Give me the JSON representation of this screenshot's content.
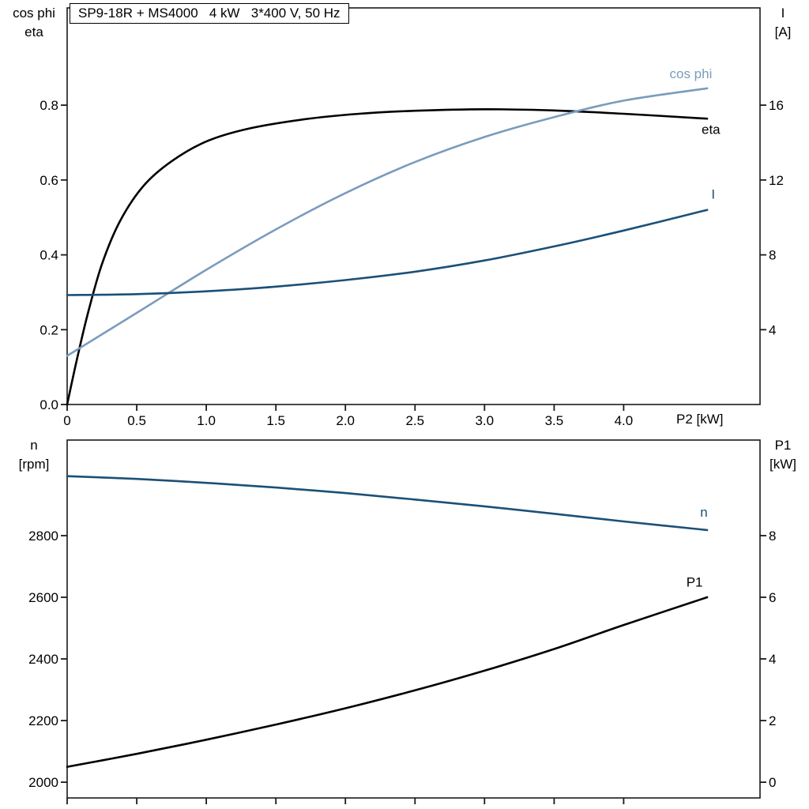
{
  "colors": {
    "frame": "#1a1a1a",
    "black_curve": "#000000",
    "light_blue": "#7a9cbd",
    "dark_blue": "#1b5078",
    "background": "#ffffff"
  },
  "chart_data": [
    {
      "type": "line",
      "title": "SP9-18R + MS4000   4 kW   3*400 V, 50 Hz",
      "xlabel": "P2 [kW]",
      "xlim": [
        0,
        4.98
      ],
      "grid": false,
      "legend": "inline-labels",
      "x_ticks": [
        0,
        0.5,
        1.0,
        1.5,
        2.0,
        2.5,
        3.0,
        3.5,
        4.0
      ],
      "x_tick_labels": [
        "0",
        "0.5",
        "1.0",
        "1.5",
        "2.0",
        "2.5",
        "3.0",
        "3.5",
        "4.0"
      ],
      "left_axis": {
        "label_lines": [
          "cos phi",
          "eta"
        ],
        "lim": [
          0,
          1.06
        ],
        "ticks": [
          0.0,
          0.2,
          0.4,
          0.6,
          0.8
        ],
        "tick_labels": [
          "0.0",
          "0.2",
          "0.4",
          "0.6",
          "0.8"
        ]
      },
      "right_axis": {
        "label_lines": [
          "I",
          "[A]"
        ],
        "lim": [
          0,
          21.2
        ],
        "ticks": [
          4,
          8,
          12,
          16
        ],
        "tick_labels": [
          "4",
          "8",
          "12",
          "16"
        ]
      },
      "series": [
        {
          "name": "eta",
          "axis": "left",
          "color": "#000000",
          "width": 2.6,
          "x": [
            0,
            0.07,
            0.15,
            0.25,
            0.38,
            0.55,
            0.75,
            1.0,
            1.3,
            1.7,
            2.1,
            2.5,
            3.0,
            3.5,
            4.0,
            4.6
          ],
          "y": [
            0,
            0.12,
            0.245,
            0.375,
            0.49,
            0.585,
            0.65,
            0.703,
            0.737,
            0.762,
            0.777,
            0.785,
            0.789,
            0.786,
            0.777,
            0.764
          ],
          "label": {
            "text": "eta",
            "x": 4.56,
            "y": 0.723
          }
        },
        {
          "name": "cos phi",
          "axis": "left",
          "color": "#7a9cbd",
          "width": 2.6,
          "x": [
            0,
            0.5,
            1.0,
            1.5,
            2.0,
            2.5,
            3.0,
            3.5,
            4.0,
            4.6
          ],
          "y": [
            0.13,
            0.245,
            0.36,
            0.468,
            0.565,
            0.648,
            0.715,
            0.768,
            0.812,
            0.845
          ],
          "label": {
            "text": "cos phi",
            "x": 4.33,
            "y": 0.872
          }
        },
        {
          "name": "I",
          "axis": "right",
          "color": "#1b5078",
          "width": 2.6,
          "x": [
            0,
            0.5,
            1.0,
            1.5,
            2.0,
            2.5,
            3.0,
            3.5,
            4.0,
            4.6
          ],
          "y": [
            5.85,
            5.9,
            6.05,
            6.3,
            6.65,
            7.1,
            7.7,
            8.45,
            9.3,
            10.4
          ],
          "label": {
            "text": "I",
            "x": 4.63,
            "y": 11.0
          }
        }
      ]
    },
    {
      "type": "line",
      "title": "",
      "xlabel": "",
      "xlim": [
        0,
        4.98
      ],
      "grid": false,
      "legend": "inline-labels",
      "x_ticks": [
        0,
        0.5,
        1.0,
        1.5,
        2.0,
        2.5,
        3.0,
        3.5,
        4.0
      ],
      "x_tick_labels": [
        "",
        "",
        "",
        "",
        "",
        "",
        "",
        "",
        ""
      ],
      "left_axis": {
        "label_lines": [
          "n",
          "[rpm]"
        ],
        "lim": [
          1949,
          3110
        ],
        "ticks": [
          2000,
          2200,
          2400,
          2600,
          2800
        ],
        "tick_labels": [
          "2000",
          "2200",
          "2400",
          "2600",
          "2800"
        ]
      },
      "right_axis": {
        "label_lines": [
          "P1",
          "[kW]"
        ],
        "lim": [
          -0.51,
          11.1
        ],
        "ticks": [
          0,
          2,
          4,
          6,
          8
        ],
        "tick_labels": [
          "0",
          "2",
          "4",
          "6",
          "8"
        ]
      },
      "series": [
        {
          "name": "n",
          "axis": "left",
          "color": "#1b5078",
          "width": 2.6,
          "x": [
            0,
            0.5,
            1.0,
            1.5,
            2.0,
            2.5,
            3.0,
            3.5,
            4.0,
            4.6
          ],
          "y": [
            2993,
            2984,
            2971,
            2956,
            2938,
            2917,
            2895,
            2871,
            2846,
            2818
          ],
          "label": {
            "text": "n",
            "x": 4.55,
            "y": 2862
          }
        },
        {
          "name": "P1",
          "axis": "right",
          "color": "#000000",
          "width": 2.6,
          "x": [
            0,
            0.5,
            1.0,
            1.5,
            2.0,
            2.5,
            3.0,
            3.5,
            4.0,
            4.6
          ],
          "y": [
            0.5,
            0.92,
            1.38,
            1.87,
            2.4,
            2.98,
            3.62,
            4.32,
            5.1,
            6.0
          ],
          "label": {
            "text": "P1",
            "x": 4.45,
            "y": 6.35
          }
        }
      ]
    }
  ]
}
